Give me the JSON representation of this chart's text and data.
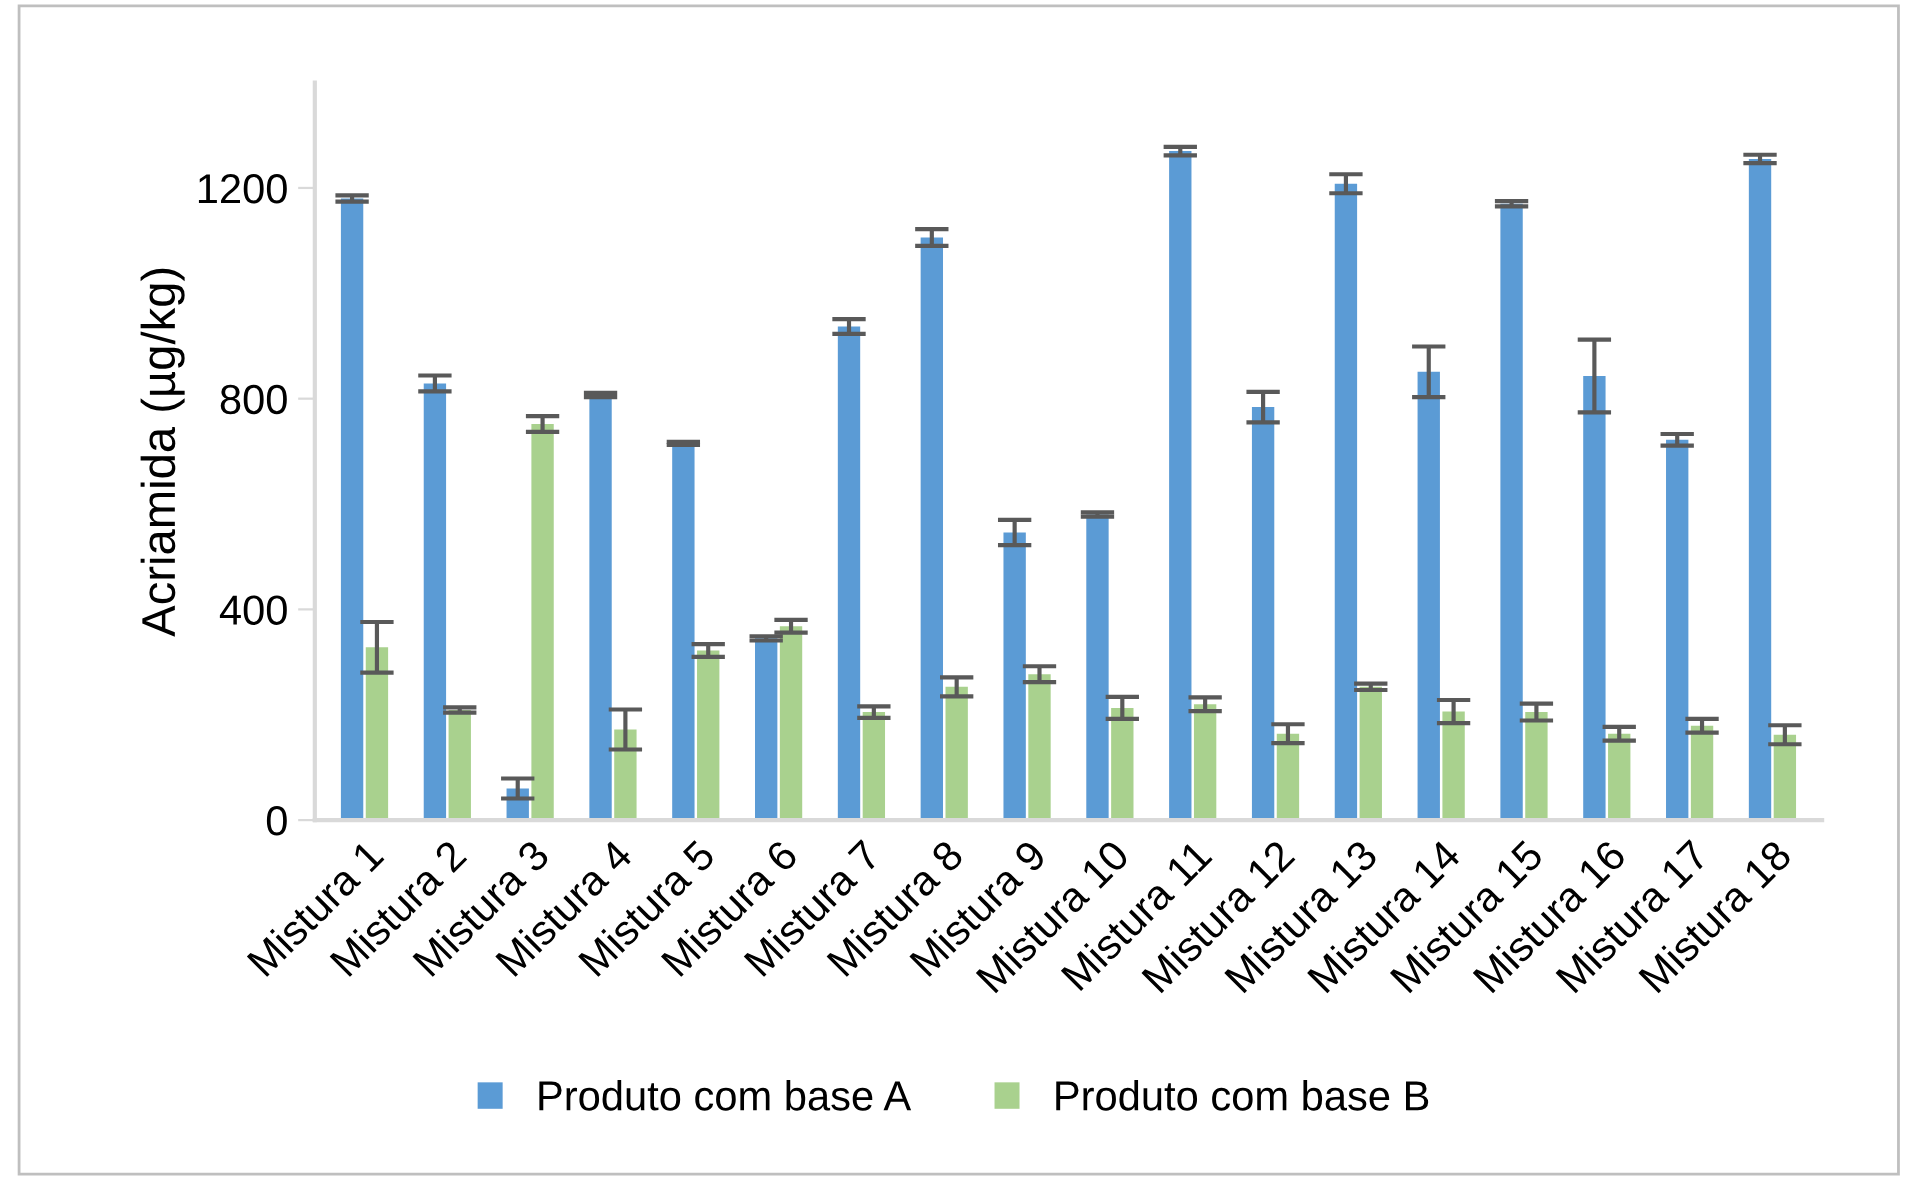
{
  "chart_data": {
    "type": "bar",
    "ylabel": "Acriamida (µg/kg)",
    "categories": [
      "Mistura 1",
      "Mistura 2",
      "Mistura 3",
      "Mistura 4",
      "Mistura 5",
      "Mistura 6",
      "Mistura 7",
      "Mistura 8",
      "Mistura 9",
      "Mistura 10",
      "Mistura 11",
      "Mistura 12",
      "Mistura 13",
      "Mistura 14",
      "Mistura 15",
      "Mistura 16",
      "Mistura 17",
      "Mistura 18"
    ],
    "series": [
      {
        "name": "Produto com base A",
        "color": "#5b9bd5",
        "values": [
          1180,
          829,
          60,
          807,
          715,
          345,
          937,
          1106,
          546,
          580,
          1270,
          784,
          1208,
          851,
          1170,
          843,
          722,
          1255
        ],
        "errors": [
          6,
          15,
          19,
          4,
          3,
          4,
          14,
          16,
          24,
          4,
          8,
          29,
          18,
          48,
          5,
          69,
          11,
          8
        ]
      },
      {
        "name": "Produto com base B",
        "color": "#a9d18e",
        "values": [
          328,
          209,
          752,
          172,
          322,
          368,
          205,
          253,
          277,
          213,
          220,
          164,
          253,
          206,
          205,
          164,
          179,
          162
        ],
        "errors": [
          48,
          5,
          15,
          38,
          12,
          12,
          11,
          18,
          15,
          21,
          13,
          18,
          6,
          22,
          16,
          13,
          13,
          18
        ]
      }
    ],
    "ylim": [
      0,
      1400
    ],
    "yticks": [
      0,
      400,
      800,
      1200
    ],
    "grid": false,
    "legend": "bottom"
  }
}
